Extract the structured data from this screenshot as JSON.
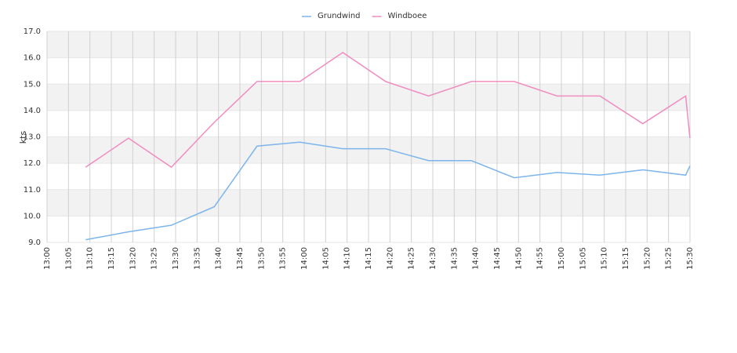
{
  "chart_data": {
    "type": "line",
    "y_label": "kts",
    "x": [
      "13:09",
      "13:19",
      "13:29",
      "13:39",
      "13:49",
      "13:59",
      "14:09",
      "14:19",
      "14:29",
      "14:39",
      "14:49",
      "14:59",
      "15:09",
      "15:19",
      "15:29",
      "15:30"
    ],
    "series": [
      {
        "name": "Grundwind",
        "color": "#7cb5ec",
        "values": [
          9.1,
          9.4,
          9.65,
          10.35,
          12.65,
          12.8,
          12.55,
          12.55,
          12.1,
          12.1,
          11.45,
          11.65,
          11.55,
          11.75,
          11.55,
          11.9
        ]
      },
      {
        "name": "Windboee",
        "color": "#f08cc0",
        "values": [
          11.85,
          12.95,
          11.85,
          13.55,
          15.1,
          15.1,
          16.2,
          15.1,
          14.55,
          15.1,
          15.1,
          14.55,
          14.55,
          13.5,
          14.55,
          12.95
        ]
      }
    ],
    "xlim": [
      "13:00",
      "15:30"
    ],
    "xticks": [
      "13:00",
      "13:05",
      "13:10",
      "13:15",
      "13:20",
      "13:25",
      "13:30",
      "13:35",
      "13:40",
      "13:45",
      "13:50",
      "13:55",
      "14:00",
      "14:05",
      "14:10",
      "14:15",
      "14:20",
      "14:25",
      "14:30",
      "14:35",
      "14:40",
      "14:45",
      "14:50",
      "14:55",
      "15:00",
      "15:05",
      "15:10",
      "15:15",
      "15:20",
      "15:25",
      "15:30"
    ],
    "ylim": [
      9,
      17
    ],
    "yticks": [
      {
        "value": 9,
        "label": "9.0"
      },
      {
        "value": 10,
        "label": "10.0"
      },
      {
        "value": 11,
        "label": "11.0"
      },
      {
        "value": 12,
        "label": "12.0"
      },
      {
        "value": 13,
        "label": "13.0"
      },
      {
        "value": 14,
        "label": "14.0"
      },
      {
        "value": 15,
        "label": "15.0"
      },
      {
        "value": 16,
        "label": "16.0"
      },
      {
        "value": 17,
        "label": "17.0"
      }
    ],
    "grid": true,
    "legend": "top"
  }
}
